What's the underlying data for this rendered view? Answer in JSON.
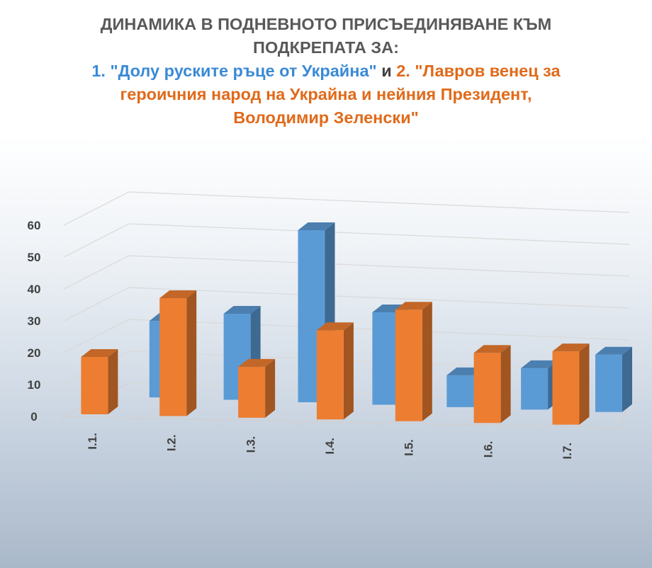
{
  "chart_data": {
    "type": "bar",
    "title_line1": "ДИНАМИКА В ПОДНЕВНОТО ПРИСЪЕДИНЯВАНЕ КЪМ",
    "title_line2": "ПОДКРЕПАТА ЗА:",
    "title_series1": "1. \"Долу руските ръце от Украйна\"",
    "title_connector": "и",
    "title_series2_part1": "2. \"Лавров венец за",
    "title_series2_part2": "героичния народ на Украйна и нейния Президент,",
    "title_series2_part3": "Володимир Зеленски\"",
    "categories": [
      "I.1.",
      "I.2.",
      "I.3.",
      "I.4.",
      "I.5.",
      "I.6.",
      "I.7."
    ],
    "series": [
      {
        "values": [
          24,
          27,
          54,
          29,
          10,
          13,
          18
        ],
        "color": "#5b9bd5"
      },
      {
        "values": [
          18,
          37,
          16,
          28,
          35,
          22,
          23
        ],
        "color": "#ed7d31"
      }
    ],
    "yticks": [
      0,
      10,
      20,
      30,
      40,
      50,
      60
    ],
    "ylim": [
      0,
      60
    ],
    "grid": true,
    "projection": "3d"
  }
}
